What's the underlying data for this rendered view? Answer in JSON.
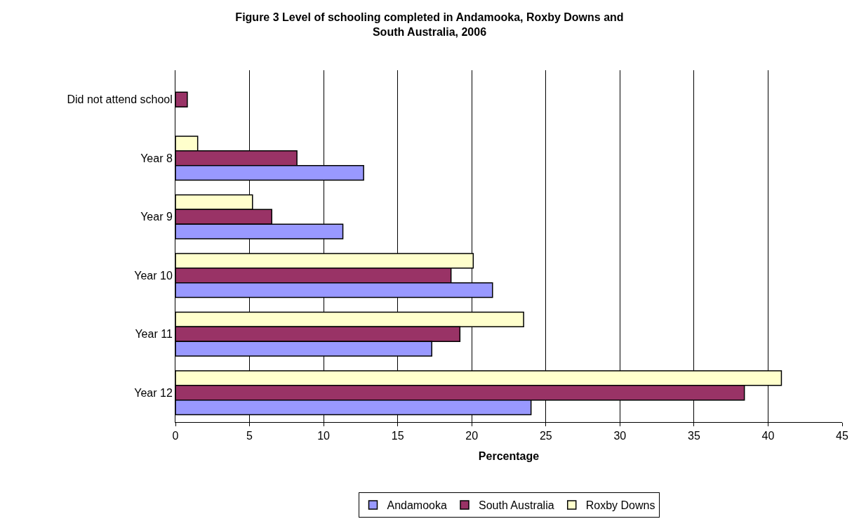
{
  "chart_data": {
    "type": "bar",
    "orientation": "horizontal",
    "title": "Figure 3 Level of schooling completed in Andamooka, Roxby Downs and South Australia, 2006",
    "xlabel": "Percentage",
    "categories": [
      "Did not attend school",
      "Year 8",
      "Year 9",
      "Year 10",
      "Year 11",
      "Year 12"
    ],
    "series": [
      {
        "name": "Andamooka",
        "color": "#9999ff",
        "values": [
          null,
          12.7,
          11.3,
          21.4,
          17.3,
          24.0
        ]
      },
      {
        "name": "South Australia",
        "color": "#993366",
        "values": [
          0.8,
          8.2,
          6.5,
          18.6,
          19.2,
          38.4
        ]
      },
      {
        "name": "Roxby Downs",
        "color": "#ffffcc",
        "values": [
          null,
          1.5,
          5.2,
          20.1,
          23.5,
          40.9
        ]
      }
    ],
    "xlim": [
      0,
      45
    ],
    "xticks": [
      0,
      5,
      10,
      15,
      20,
      25,
      30,
      35,
      40,
      45
    ],
    "grid": "x",
    "legend": "bottom"
  }
}
